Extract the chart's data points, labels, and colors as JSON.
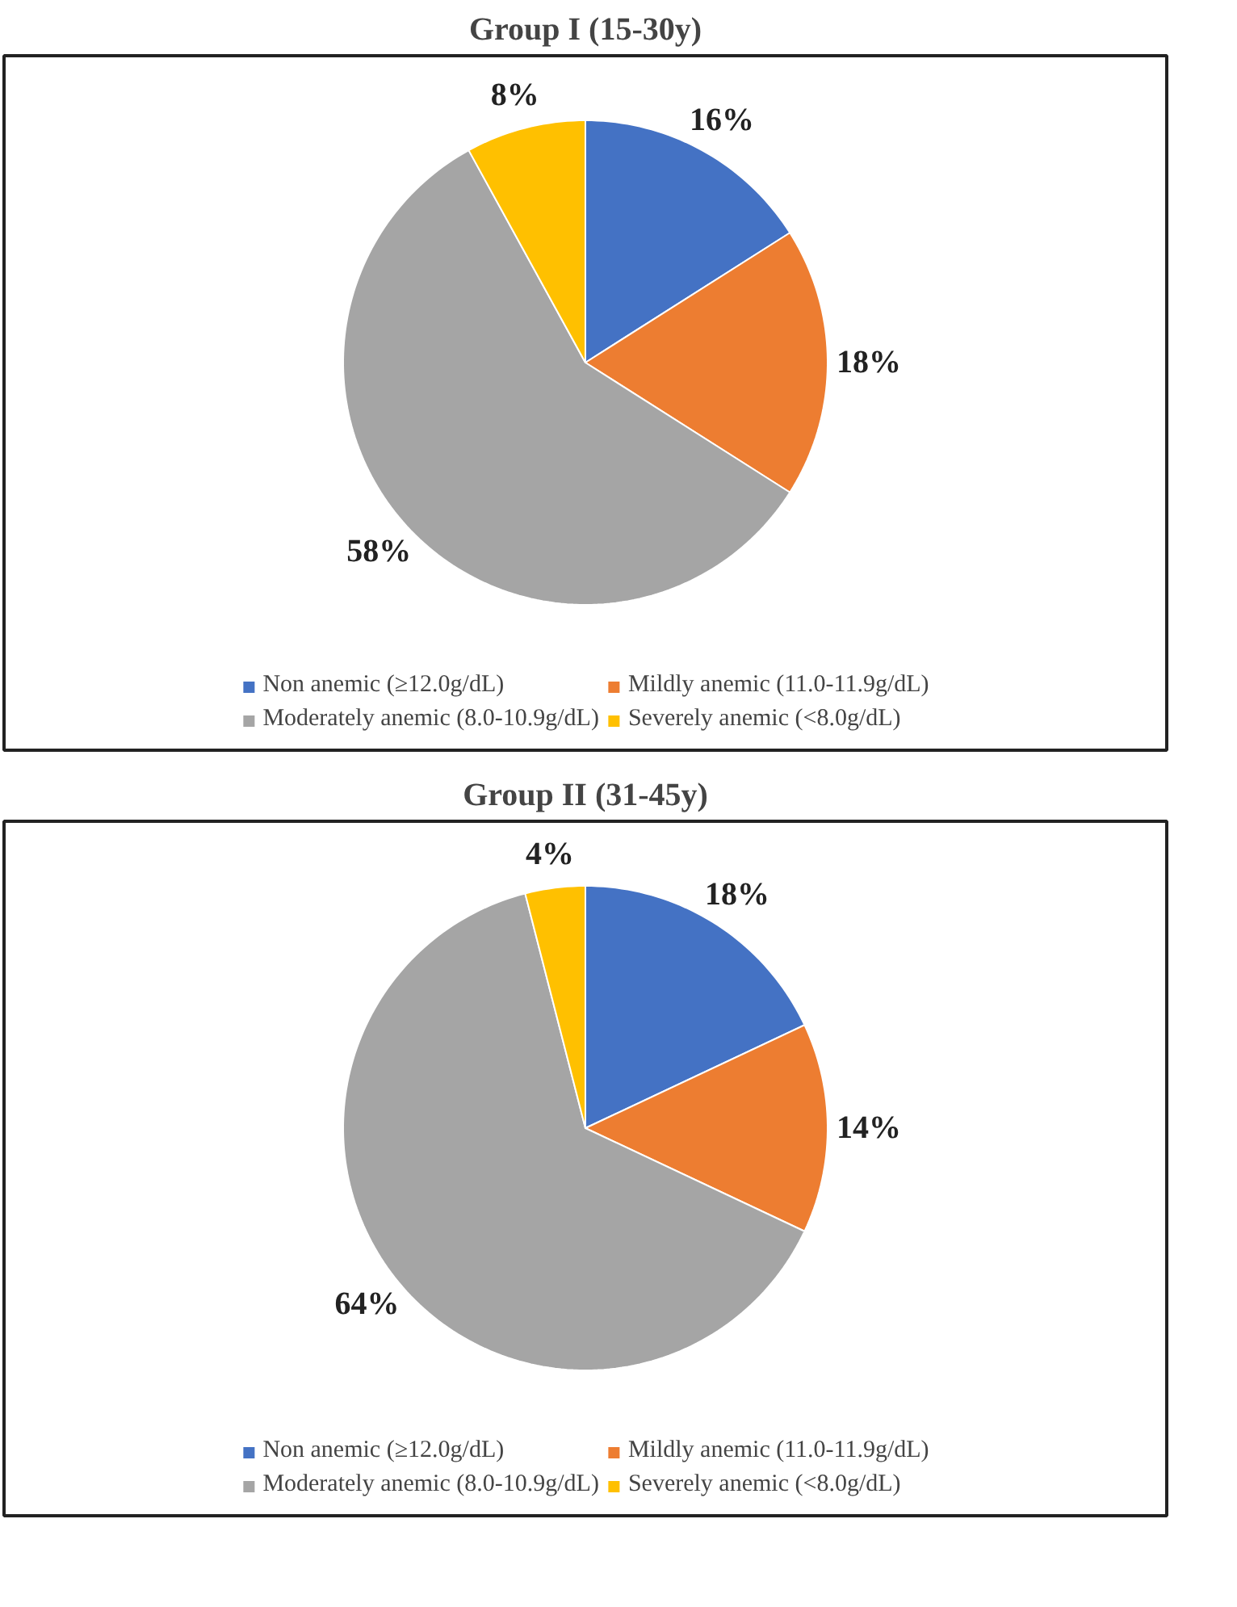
{
  "chart_data": [
    {
      "type": "pie",
      "title": "Group I (15-30y)",
      "categories": [
        "Non anemic (≥12.0g/dL)",
        "Mildly anemic (11.0-11.9g/dL)",
        "Moderately anemic (8.0-10.9g/dL)",
        "Severely anemic (<8.0g/dL)"
      ],
      "values": [
        16,
        18,
        58,
        8
      ],
      "value_labels": [
        "16%",
        "18%",
        "58%",
        "8%"
      ],
      "colors": [
        "#4472c4",
        "#ed7d31",
        "#a5a5a5",
        "#ffc000"
      ],
      "legend": "bottom"
    },
    {
      "type": "pie",
      "title": "Group II (31-45y)",
      "categories": [
        "Non anemic (≥12.0g/dL)",
        "Mildly anemic (11.0-11.9g/dL)",
        "Moderately anemic (8.0-10.9g/dL)",
        "Severely anemic (<8.0g/dL)"
      ],
      "values": [
        18,
        14,
        64,
        4
      ],
      "value_labels": [
        "18%",
        "14%",
        "64%",
        "4%"
      ],
      "colors": [
        "#4472c4",
        "#ed7d31",
        "#a5a5a5",
        "#ffc000"
      ],
      "legend": "bottom"
    }
  ]
}
